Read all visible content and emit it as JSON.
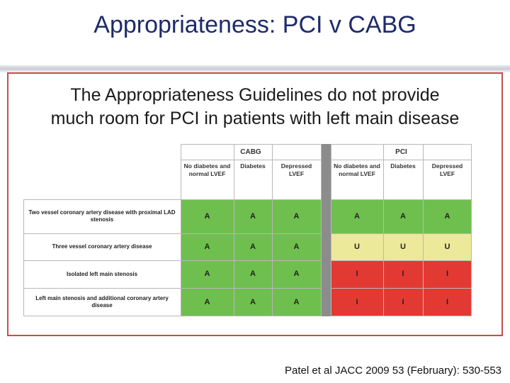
{
  "slide": {
    "title": "Appropriateness:  PCI v CABG",
    "subtitle_line1": "The Appropriateness Guidelines do not provide",
    "subtitle_line2": "much room for PCI in patients with left main disease",
    "citation": "Patel et al JACC 2009 53 (February): 530-553"
  },
  "table": {
    "groups": [
      {
        "label": "CABG"
      },
      {
        "label": "PCI"
      }
    ],
    "column_headers": [
      "No diabetes and normal LVEF",
      "Diabetes",
      "Depressed LVEF",
      "No diabetes and normal LVEF",
      "Diabetes",
      "Depressed LVEF"
    ],
    "rows": [
      {
        "label": "Two vessel coronary artery disease with proximal LAD stenosis",
        "ratings": [
          "A",
          "A",
          "A",
          "A",
          "A",
          "A"
        ],
        "colors": [
          "green",
          "green",
          "green",
          "green",
          "green",
          "green"
        ]
      },
      {
        "label": "Three vessel coronary artery disease",
        "ratings": [
          "A",
          "A",
          "A",
          "U",
          "U",
          "U"
        ],
        "colors": [
          "green",
          "green",
          "green",
          "yellow",
          "yellow",
          "yellow"
        ]
      },
      {
        "label": "Isolated left main stenosis",
        "ratings": [
          "A",
          "A",
          "A",
          "I",
          "I",
          "I"
        ],
        "colors": [
          "green",
          "green",
          "green",
          "red",
          "red",
          "red"
        ]
      },
      {
        "label": "Left main stenosis and additional coronary artery disease",
        "ratings": [
          "A",
          "A",
          "A",
          "I",
          "I",
          "I"
        ],
        "colors": [
          "green",
          "green",
          "green",
          "red",
          "red",
          "red"
        ]
      }
    ],
    "rating_colors": {
      "green": "#6fbf4f",
      "yellow": "#ede99a",
      "red": "#e23a33"
    }
  },
  "theme": {
    "title_color": "#1f2a6b",
    "panel_border": "#c0504d"
  }
}
